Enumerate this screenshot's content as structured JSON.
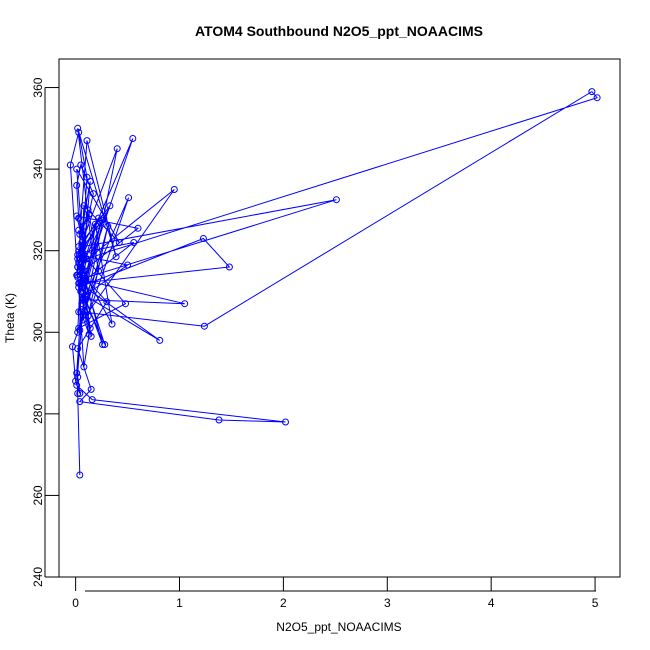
{
  "chart_data": {
    "type": "line",
    "title": "ATOM4 Southbound N2O5_ppt_NOAACIMS",
    "xlabel": "N2O5_ppt_NOAACIMS",
    "ylabel": "Theta (K)",
    "xlim": [
      -0.16,
      5.24
    ],
    "ylim": [
      240,
      367
    ],
    "xticks": [
      0,
      1,
      2,
      3,
      4,
      5
    ],
    "yticks": [
      240,
      260,
      280,
      300,
      320,
      340,
      360
    ],
    "grid": false,
    "markers": "open-circle",
    "colors": {
      "series": "#0000ff",
      "axes": "#000000"
    },
    "series": [
      {
        "x": [
          0.04,
          0.02,
          0.01,
          0.05,
          0.03,
          0.15,
          0.02,
          0.06,
          0.1,
          0.08,
          0.12,
          0.05,
          0.22,
          0.03,
          0.4,
          0.07,
          0.95,
          0.02,
          0.55,
          0.05,
          0.14,
          0.03,
          0.33,
          0.02,
          0.6,
          0.01,
          0.11,
          0.03,
          1.23,
          1.48,
          0.04,
          0.81,
          0.09,
          0.5,
          0.02,
          0.27,
          0.06,
          0.51,
          0.12,
          0.31,
          0.04,
          0.19,
          0.35,
          0.03,
          0.28,
          0.09,
          1.05,
          0.05,
          2.51,
          0.07,
          0.01,
          0.42,
          0.08,
          0.03,
          0.25,
          0.06,
          0.16,
          0.02,
          0.39,
          0.11,
          0.04,
          0.13,
          0.22,
          0.03,
          0.48,
          0.05,
          0.56,
          0.1,
          0.3,
          0.02,
          0.15,
          0.04,
          1.38,
          2.02,
          0.16,
          0.01,
          0.09,
          0.03,
          0.06,
          0.02,
          0.17,
          0.05,
          0.01,
          0.03,
          0.07,
          0.02,
          0.04,
          0.0,
          -0.03,
          0.02,
          0.05,
          0.14,
          0.08,
          -0.05,
          0.03,
          0.11,
          0.06,
          0.2,
          0.04,
          0.01,
          0.26,
          0.08,
          0.02,
          0.13,
          0.05,
          1.24,
          4.97,
          5.02,
          0.1,
          0.04
        ],
        "y": [
          265.0,
          285.0,
          290.0,
          305.0,
          312.0,
          299.0,
          318.0,
          322.0,
          309.0,
          326.0,
          330.0,
          315.0,
          328.0,
          320.0,
          345.0,
          303.0,
          335.0,
          316.0,
          347.5,
          310.0,
          337.0,
          321.0,
          331.0,
          314.0,
          325.5,
          328.5,
          318.0,
          311.0,
          323.0,
          316.0,
          312.0,
          298.0,
          309.0,
          316.5,
          319.0,
          328.0,
          307.0,
          333.0,
          304.0,
          326.0,
          300.5,
          326.5,
          302.0,
          317.0,
          297.0,
          308.0,
          307.0,
          313.0,
          332.5,
          321.0,
          340.0,
          322.0,
          331.0,
          305.0,
          327.5,
          311.0,
          320.0,
          350.0,
          318.5,
          347.0,
          324.0,
          329.0,
          315.0,
          301.0,
          307.0,
          319.5,
          322.0,
          313.0,
          307.5,
          296.0,
          286.0,
          283.0,
          278.5,
          278.0,
          283.5,
          287.0,
          312.5,
          325.0,
          319.0,
          316.0,
          334.0,
          341.0,
          336.0,
          328.0,
          322.5,
          289.0,
          285.0,
          288.0,
          296.5,
          300.0,
          316.0,
          301.0,
          291.5,
          341.0,
          349.0,
          338.0,
          320.0,
          326.0,
          318.0,
          314.0,
          297.0,
          314.0,
          313.5,
          299.5,
          305.0,
          301.5,
          359.0,
          357.5,
          318.0,
          315.0
        ]
      }
    ]
  }
}
